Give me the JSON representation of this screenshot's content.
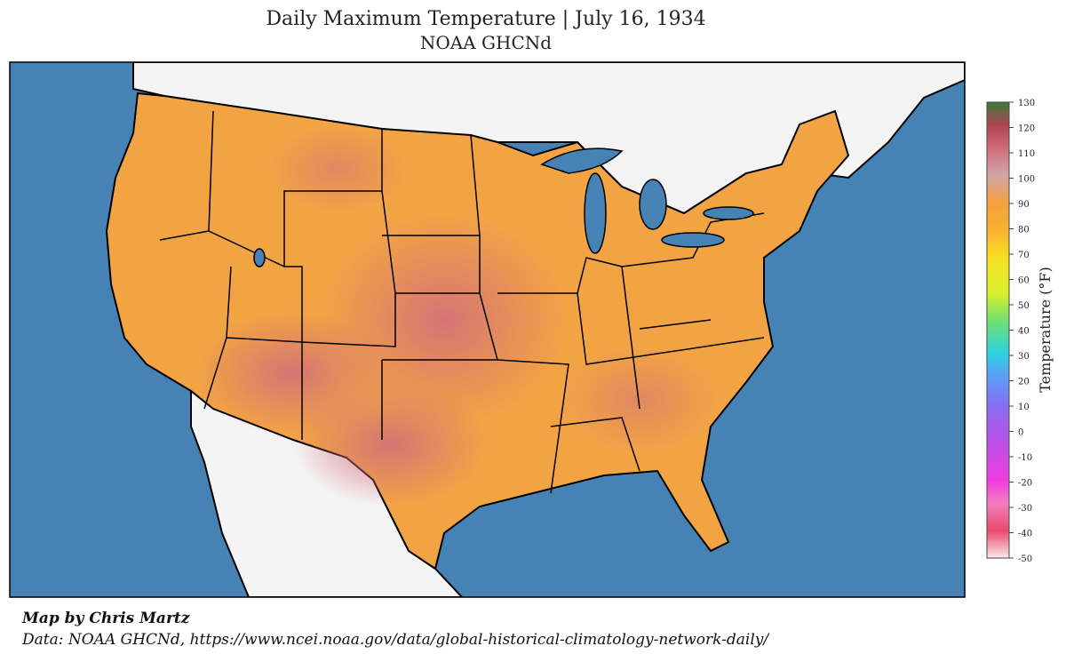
{
  "title": "Daily Maximum Temperature | July 16, 1934",
  "subtitle": "NOAA GHCNd",
  "colorbar": {
    "label": "Temperature (°F)",
    "lim": [
      -50,
      130
    ],
    "ticks": [
      -50,
      -40,
      -30,
      -20,
      -10,
      0,
      10,
      20,
      30,
      40,
      50,
      60,
      70,
      80,
      90,
      100,
      110,
      120,
      130
    ]
  },
  "credits": [
    "Map by Chris Martz",
    "Data: NOAA GHCNd, https://www.ncei.noaa.gov/data/global-historical-climatology-network-daily/"
  ]
}
